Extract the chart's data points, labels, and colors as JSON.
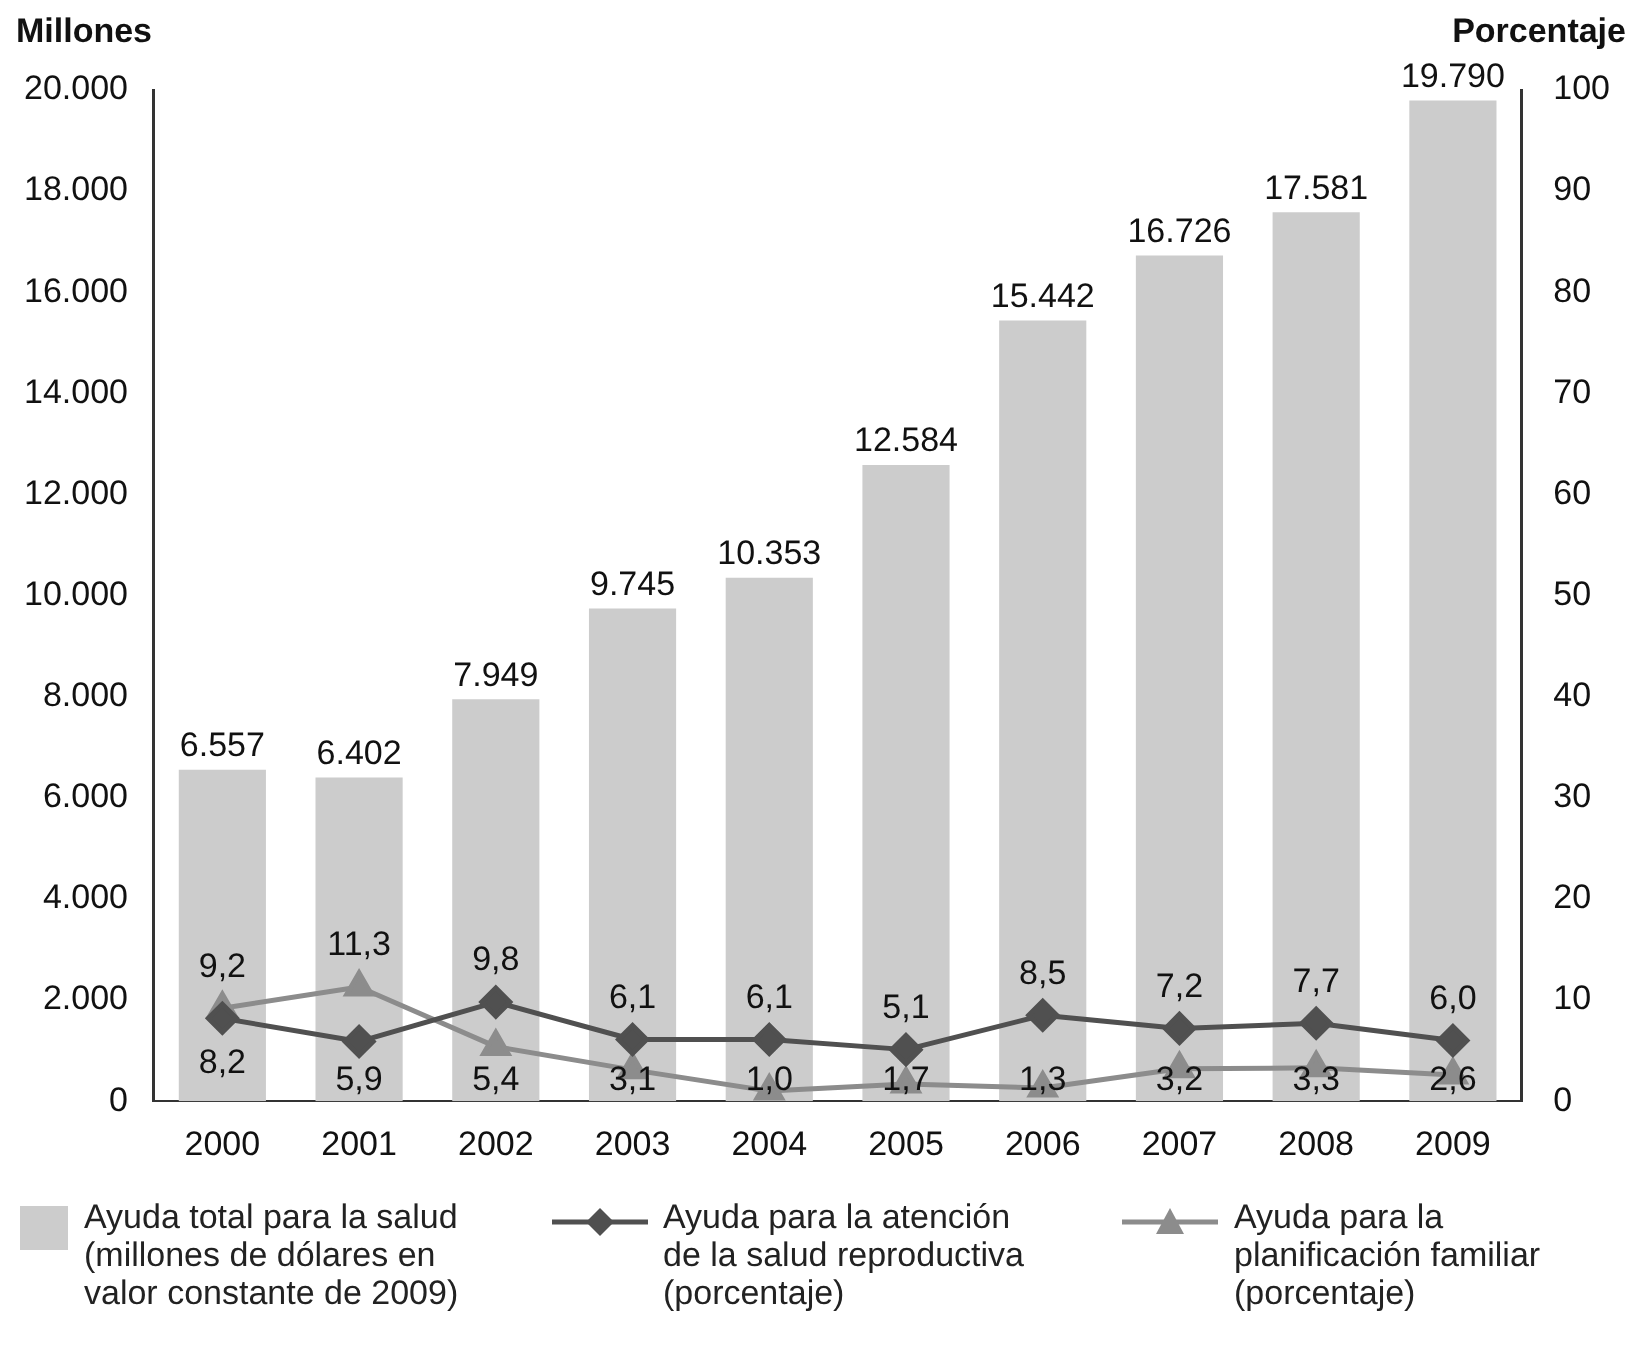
{
  "chart_data": {
    "type": "bar",
    "ylabel": "Millones",
    "y2label": "Porcentaje",
    "categories": [
      "2000",
      "2001",
      "2002",
      "2003",
      "2004",
      "2005",
      "2006",
      "2007",
      "2008",
      "2009"
    ],
    "series": [
      {
        "name": "Ayuda total para la salud (millones de dólares en valor constante de 2009)",
        "color": "#cccccc",
        "values": [
          6557,
          6402,
          7949,
          9745,
          10353,
          12584,
          15442,
          16726,
          17581,
          19790
        ],
        "value_labels": [
          "6.557",
          "6.402",
          "7.949",
          "9.745",
          "10.353",
          "12.584",
          "15.442",
          "16.726",
          "17.581",
          "19.790"
        ]
      },
      {
        "name": "Ayuda para la atención de la salud reproductiva (porcentaje)",
        "type": "line",
        "axis": "y2",
        "color": "#505050",
        "marker": "diamond",
        "values": [
          8.2,
          5.9,
          9.8,
          6.1,
          6.1,
          5.1,
          8.5,
          7.2,
          7.7,
          6.0
        ],
        "value_labels": [
          "8,2",
          "5,9",
          "9,8",
          "6,1",
          "6,1",
          "5,1",
          "8,5",
          "7,2",
          "7,7",
          "6,0"
        ]
      },
      {
        "name": "Ayuda para la planificación familiar (porcentaje)",
        "type": "line",
        "axis": "y2",
        "color": "#8c8c8c",
        "marker": "triangle",
        "values": [
          9.2,
          11.3,
          5.4,
          3.1,
          1.0,
          1.7,
          1.3,
          3.2,
          3.3,
          2.6
        ],
        "value_labels": [
          "9,2",
          "11,3",
          "5,4",
          "3,1",
          "1,0",
          "1,7",
          "1,3",
          "3,2",
          "3,3",
          "2,6"
        ]
      }
    ],
    "ylim": [
      0,
      20000
    ],
    "yticks": [
      {
        "value": 0,
        "label": "0"
      },
      {
        "value": 2000,
        "label": "2.000"
      },
      {
        "value": 4000,
        "label": "4.000"
      },
      {
        "value": 6000,
        "label": "6.000"
      },
      {
        "value": 8000,
        "label": "8.000"
      },
      {
        "value": 10000,
        "label": "10.000"
      },
      {
        "value": 12000,
        "label": "12.000"
      },
      {
        "value": 14000,
        "label": "14.000"
      },
      {
        "value": 16000,
        "label": "16.000"
      },
      {
        "value": 18000,
        "label": "18.000"
      },
      {
        "value": 20000,
        "label": "20.000"
      }
    ],
    "y2lim": [
      0,
      100
    ],
    "y2ticks": [
      0,
      10,
      20,
      30,
      40,
      50,
      60,
      70,
      80,
      90,
      100
    ],
    "grid": false,
    "legend": "bottom",
    "line_style": "solid"
  }
}
